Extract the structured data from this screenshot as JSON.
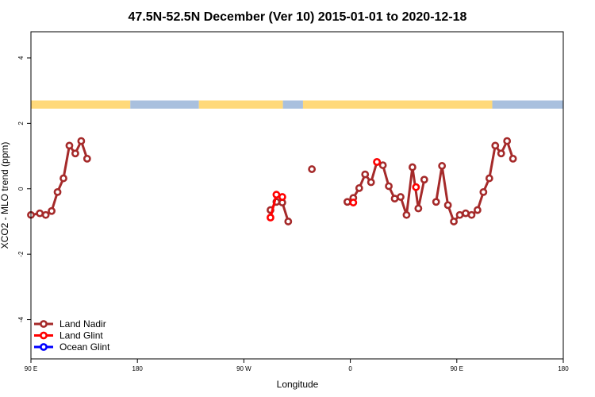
{
  "chart_data": {
    "type": "line",
    "title": "47.5N-52.5N December (Ver 10)   2015-01-01 to 2020-12-18",
    "xlabel": "Longitude",
    "ylabel": "XCO2 - MLO trend (ppm)",
    "xlim": [
      -90,
      360
    ],
    "ylim": [
      -5.2,
      4.8
    ],
    "x_ticks": [
      {
        "value": -90,
        "label": "90 E"
      },
      {
        "value": 0,
        "label": "180"
      },
      {
        "value": 90,
        "label": "90 W"
      },
      {
        "value": 180,
        "label": "0"
      },
      {
        "value": 270,
        "label": "90 E"
      },
      {
        "value": 360,
        "label": "180"
      }
    ],
    "y_ticks": [
      {
        "value": -4,
        "label": "-4"
      },
      {
        "value": -2,
        "label": "-2"
      },
      {
        "value": 0,
        "label": "0"
      },
      {
        "value": 2,
        "label": "2"
      },
      {
        "value": 4,
        "label": "4"
      }
    ],
    "land_ocean_strip": {
      "y_range": [
        2.45,
        2.7
      ],
      "land_color": "#FFD97A",
      "ocean_color": "#A9C0DE",
      "segments": [
        {
          "type": "land",
          "x": [
            -90,
            -6
          ]
        },
        {
          "type": "ocean",
          "x": [
            -6,
            52
          ]
        },
        {
          "type": "land",
          "x": [
            52,
            123
          ]
        },
        {
          "type": "ocean",
          "x": [
            123,
            140
          ]
        },
        {
          "type": "land",
          "x": [
            140,
            300
          ]
        },
        {
          "type": "ocean",
          "x": [
            300,
            360
          ]
        }
      ]
    },
    "series": [
      {
        "name": "Land Nadir",
        "color": "#A52A2A",
        "segments": [
          {
            "x": [
              -90,
              -82.5,
              -77.5,
              -72.5,
              -67.5,
              -62.5,
              -57.5,
              -52.5,
              -47.5,
              -42.5,
              -37.5
            ],
            "y": [
              -0.8,
              -0.75,
              -0.8,
              -0.68,
              -0.1,
              0.32,
              1.32,
              1.08,
              1.46,
              0.92,
              null
            ]
          },
          {
            "x": [
              112.5,
              117.5,
              122.5,
              127.5
            ],
            "y": [
              -0.65,
              -0.4,
              -0.42,
              -1.0
            ]
          },
          {
            "x": [
              147.5
            ],
            "y": [
              0.6
            ]
          },
          {
            "x": [
              177.5,
              182.5,
              187.5,
              192.5,
              197.5,
              202.5,
              207.5,
              212.5,
              217.5,
              222.5,
              227.5,
              232.5,
              237.5,
              242.5
            ],
            "y": [
              -0.4,
              -0.28,
              0.02,
              0.44,
              0.2,
              0.82,
              0.72,
              0.08,
              -0.3,
              -0.25,
              -0.8,
              0.66,
              -0.6,
              0.28
            ]
          },
          {
            "x": [
              252.5,
              257.5,
              262.5,
              267.5,
              272.5,
              277.5,
              282.5,
              287.5,
              292.5,
              297.5,
              302.5,
              307.5,
              312.5,
              317.5,
              322.5,
              327.5
            ],
            "y": [
              -0.4,
              0.7,
              -0.5,
              -1.0,
              -0.8,
              -0.75,
              -0.8,
              -0.65,
              -0.1,
              0.32,
              1.32,
              1.08,
              1.46,
              0.92,
              null,
              null
            ]
          }
        ]
      },
      {
        "name": "Land Glint",
        "color": "#FF0000",
        "segments": [
          {
            "x": [
              112.5,
              117.5,
              122.5
            ],
            "y": [
              -0.88,
              -0.18,
              -0.25
            ]
          },
          {
            "x": [
              182.5
            ],
            "y": [
              -0.42
            ]
          },
          {
            "x": [
              202.5
            ],
            "y": [
              0.82
            ]
          },
          {
            "x": [
              235.5
            ],
            "y": [
              0.05
            ]
          }
        ]
      },
      {
        "name": "Ocean Glint",
        "color": "#0000FF",
        "segments": []
      }
    ],
    "legend": {
      "position": "bottom-left",
      "entries": [
        {
          "label": "Land Nadir",
          "color": "#A52A2A"
        },
        {
          "label": "Land Glint",
          "color": "#FF0000"
        },
        {
          "label": "Ocean Glint",
          "color": "#0000FF"
        }
      ]
    }
  }
}
